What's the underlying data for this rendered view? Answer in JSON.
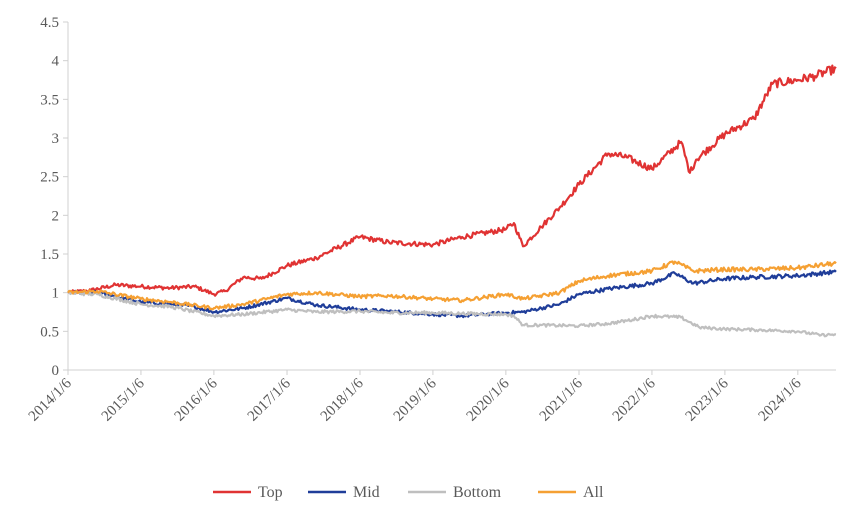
{
  "chart_data": {
    "type": "line",
    "title": "",
    "xlabel": "",
    "ylabel": "",
    "x_tick_labels": [
      "2014/1/6",
      "2015/1/6",
      "2016/1/6",
      "2017/1/6",
      "2018/1/6",
      "2019/1/6",
      "2020/1/6",
      "2021/1/6",
      "2022/1/6",
      "2023/1/6",
      "2024/1/6"
    ],
    "y_tick_labels": [
      "0",
      "0.5",
      "1",
      "1.5",
      "2",
      "2.5",
      "3",
      "3.5",
      "4",
      "4.5"
    ],
    "ylim": [
      0,
      4.5
    ],
    "xlim": [
      "2014-01-06",
      "2024-07-15"
    ],
    "grid": false,
    "legend_position": "bottom",
    "series": [
      {
        "name": "Top",
        "color": "#e03333",
        "points": [
          [
            "2014-01-06",
            1.0
          ],
          [
            "2014-05-01",
            1.03
          ],
          [
            "2014-09-01",
            1.1
          ],
          [
            "2015-01-06",
            1.08
          ],
          [
            "2015-06-01",
            1.06
          ],
          [
            "2015-10-01",
            1.08
          ],
          [
            "2016-01-06",
            0.98
          ],
          [
            "2016-03-01",
            1.02
          ],
          [
            "2016-06-01",
            1.2
          ],
          [
            "2016-09-01",
            1.18
          ],
          [
            "2017-01-06",
            1.35
          ],
          [
            "2017-06-01",
            1.45
          ],
          [
            "2018-01-06",
            1.72
          ],
          [
            "2018-06-01",
            1.65
          ],
          [
            "2019-01-06",
            1.62
          ],
          [
            "2019-06-01",
            1.72
          ],
          [
            "2020-01-06",
            1.82
          ],
          [
            "2020-02-15",
            1.9
          ],
          [
            "2020-04-01",
            1.6
          ],
          [
            "2020-07-01",
            1.85
          ],
          [
            "2020-10-01",
            2.1
          ],
          [
            "2021-01-06",
            2.4
          ],
          [
            "2021-06-01",
            2.8
          ],
          [
            "2021-09-01",
            2.75
          ],
          [
            "2022-01-06",
            2.6
          ],
          [
            "2022-06-01",
            2.95
          ],
          [
            "2022-07-15",
            2.55
          ],
          [
            "2022-08-15",
            2.72
          ],
          [
            "2023-01-06",
            3.05
          ],
          [
            "2023-06-01",
            3.25
          ],
          [
            "2023-09-01",
            3.7
          ],
          [
            "2024-01-06",
            3.75
          ],
          [
            "2024-04-01",
            3.8
          ],
          [
            "2024-07-15",
            3.9
          ]
        ]
      },
      {
        "name": "Mid",
        "color": "#1f3d99",
        "points": [
          [
            "2014-01-06",
            1.0
          ],
          [
            "2014-06-01",
            1.0
          ],
          [
            "2015-01-06",
            0.88
          ],
          [
            "2015-06-01",
            0.85
          ],
          [
            "2015-10-01",
            0.82
          ],
          [
            "2016-01-06",
            0.75
          ],
          [
            "2016-06-01",
            0.8
          ],
          [
            "2017-01-06",
            0.93
          ],
          [
            "2017-06-01",
            0.84
          ],
          [
            "2018-01-06",
            0.78
          ],
          [
            "2018-06-01",
            0.76
          ],
          [
            "2019-01-06",
            0.72
          ],
          [
            "2019-06-01",
            0.7
          ],
          [
            "2020-01-06",
            0.74
          ],
          [
            "2020-04-01",
            0.75
          ],
          [
            "2020-10-01",
            0.85
          ],
          [
            "2021-01-06",
            0.98
          ],
          [
            "2021-06-01",
            1.05
          ],
          [
            "2022-01-06",
            1.12
          ],
          [
            "2022-05-01",
            1.25
          ],
          [
            "2022-08-01",
            1.12
          ],
          [
            "2023-01-06",
            1.18
          ],
          [
            "2023-06-01",
            1.2
          ],
          [
            "2024-01-06",
            1.22
          ],
          [
            "2024-07-15",
            1.27
          ]
        ]
      },
      {
        "name": "Bottom",
        "color": "#bfbfbf",
        "points": [
          [
            "2014-01-06",
            1.0
          ],
          [
            "2014-06-01",
            0.98
          ],
          [
            "2015-01-06",
            0.85
          ],
          [
            "2015-06-01",
            0.82
          ],
          [
            "2016-01-06",
            0.7
          ],
          [
            "2016-06-01",
            0.72
          ],
          [
            "2017-01-06",
            0.78
          ],
          [
            "2017-06-01",
            0.75
          ],
          [
            "2018-01-06",
            0.76
          ],
          [
            "2018-06-01",
            0.74
          ],
          [
            "2019-01-06",
            0.74
          ],
          [
            "2019-06-01",
            0.73
          ],
          [
            "2020-01-06",
            0.72
          ],
          [
            "2020-02-15",
            0.7
          ],
          [
            "2020-04-01",
            0.58
          ],
          [
            "2020-07-01",
            0.58
          ],
          [
            "2021-01-06",
            0.57
          ],
          [
            "2021-06-01",
            0.6
          ],
          [
            "2021-10-01",
            0.65
          ],
          [
            "2022-01-06",
            0.7
          ],
          [
            "2022-06-01",
            0.68
          ],
          [
            "2022-09-01",
            0.55
          ],
          [
            "2023-01-06",
            0.53
          ],
          [
            "2023-06-01",
            0.52
          ],
          [
            "2024-01-06",
            0.5
          ],
          [
            "2024-05-01",
            0.45
          ],
          [
            "2024-07-15",
            0.46
          ]
        ]
      },
      {
        "name": "All",
        "color": "#f5a033",
        "points": [
          [
            "2014-01-06",
            1.0
          ],
          [
            "2014-06-01",
            1.02
          ],
          [
            "2015-01-06",
            0.92
          ],
          [
            "2015-06-01",
            0.88
          ],
          [
            "2016-01-06",
            0.8
          ],
          [
            "2016-06-01",
            0.85
          ],
          [
            "2017-01-06",
            0.98
          ],
          [
            "2017-06-01",
            1.0
          ],
          [
            "2018-01-06",
            0.95
          ],
          [
            "2018-06-01",
            0.96
          ],
          [
            "2019-01-06",
            0.92
          ],
          [
            "2019-06-01",
            0.9
          ],
          [
            "2020-01-06",
            0.98
          ],
          [
            "2020-04-01",
            0.92
          ],
          [
            "2020-10-01",
            1.0
          ],
          [
            "2021-01-06",
            1.15
          ],
          [
            "2021-06-01",
            1.22
          ],
          [
            "2022-01-06",
            1.28
          ],
          [
            "2022-05-01",
            1.4
          ],
          [
            "2022-08-01",
            1.28
          ],
          [
            "2023-01-06",
            1.3
          ],
          [
            "2023-06-01",
            1.3
          ],
          [
            "2024-01-06",
            1.32
          ],
          [
            "2024-07-15",
            1.38
          ]
        ]
      }
    ]
  }
}
